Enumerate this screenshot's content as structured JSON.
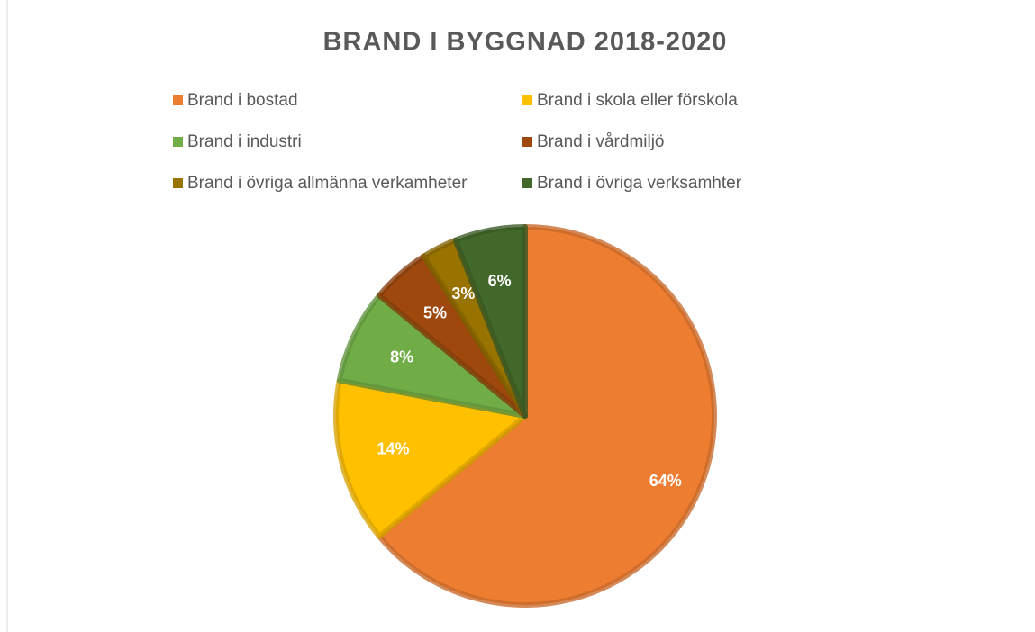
{
  "chart_data": {
    "type": "pie",
    "title": "BRAND I BYGGNAD 2018-2020",
    "categories": [
      "Brand i bostad",
      "Brand i skola eller förskola",
      "Brand i industri",
      "Brand i vårdmiljö",
      "Brand i övriga allmänna verkamheter",
      "Brand i övriga verksamhter"
    ],
    "values": [
      64,
      14,
      8,
      5,
      3,
      6
    ],
    "value_labels": [
      "64%",
      "14%",
      "8%",
      "5%",
      "3%",
      "6%"
    ],
    "colors": [
      "#ED7D31",
      "#FFC000",
      "#70AD47",
      "#9E480E",
      "#997300",
      "#43682B"
    ]
  }
}
